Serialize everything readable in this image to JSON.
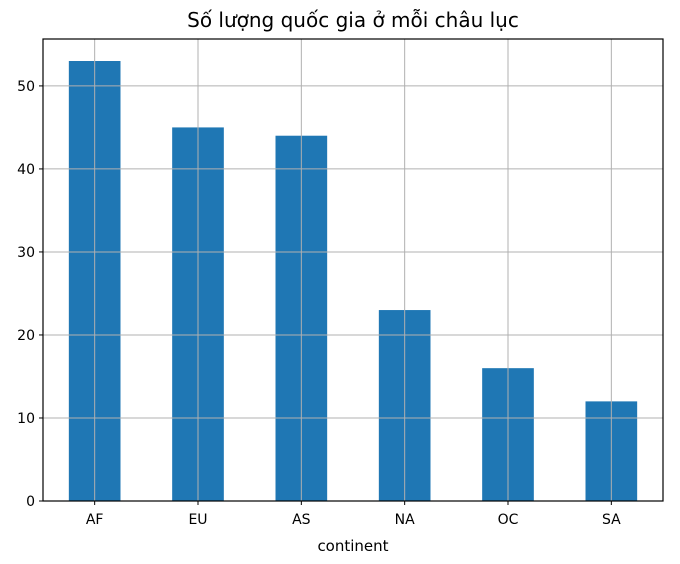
{
  "chart_data": {
    "type": "bar",
    "title": "Số lượng quốc gia ở mỗi châu lục",
    "xlabel": "continent",
    "ylabel": "",
    "categories": [
      "AF",
      "EU",
      "AS",
      "NA",
      "OC",
      "SA"
    ],
    "values": [
      53,
      45,
      44,
      23,
      16,
      12
    ],
    "ylim": [
      0,
      55.65
    ],
    "yticks": [
      "0",
      "10",
      "20",
      "30",
      "40",
      "50"
    ],
    "grid": true,
    "bar_color": "#1f77b4"
  }
}
